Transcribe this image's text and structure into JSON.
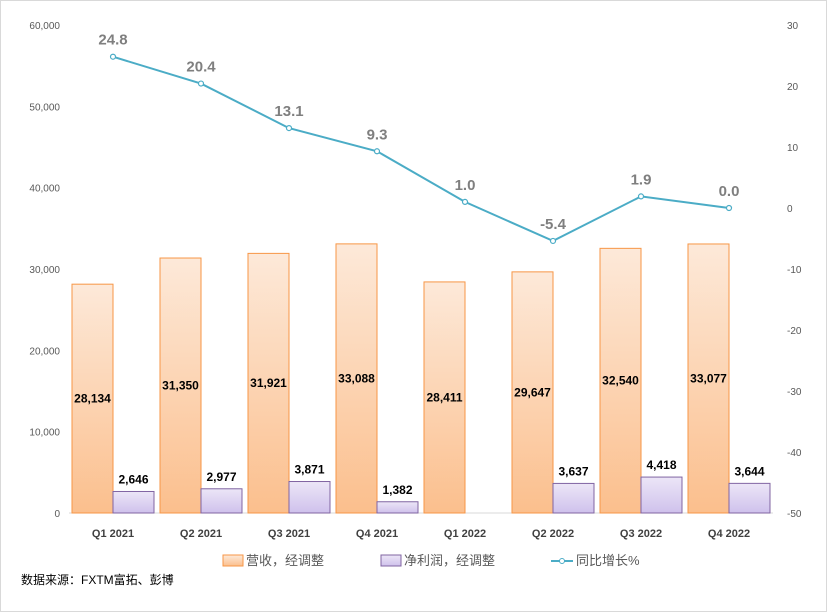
{
  "chart_data": {
    "type": "bar+line",
    "categories": [
      "Q1 2021",
      "Q2 2021",
      "Q3 2021",
      "Q4 2021",
      "Q1 2022",
      "Q2 2022",
      "Q3 2022",
      "Q4 2022"
    ],
    "series": [
      {
        "name": "营收，经调整",
        "type": "bar",
        "axis": "left",
        "color": "#fbc08e",
        "values": [
          28134,
          31350,
          31921,
          33088,
          28411,
          29647,
          32540,
          33077
        ],
        "labels": [
          "28,134",
          "31,350",
          "31,921",
          "33,088",
          "28,411",
          "29,647",
          "32,540",
          "33,077"
        ]
      },
      {
        "name": "净利润，经调整",
        "type": "bar",
        "axis": "left",
        "color": "#d9cdf0",
        "values": [
          2646,
          2977,
          3871,
          1382,
          null,
          3637,
          4418,
          3644
        ],
        "labels": [
          "2,646",
          "2,977",
          "3,871",
          "1,382",
          "",
          "3,637",
          "4,418",
          "3,644"
        ]
      },
      {
        "name": "同比增长%",
        "type": "line",
        "axis": "right",
        "color": "#4bacc6",
        "values": [
          24.8,
          20.4,
          13.1,
          9.3,
          1.0,
          -5.4,
          1.9,
          0.0
        ],
        "labels": [
          "24.8",
          "20.4",
          "13.1",
          "9.3",
          "1.0",
          "-5.4",
          "1.9",
          "0.0"
        ]
      }
    ],
    "left_axis": {
      "ylim": [
        0,
        60000
      ],
      "ticks": [
        "0",
        "10,000",
        "20,000",
        "30,000",
        "40,000",
        "50,000",
        "60,000"
      ]
    },
    "right_axis": {
      "ylim": [
        -50,
        30
      ],
      "ticks": [
        "-50",
        "-40",
        "-30",
        "-20",
        "-10",
        "0",
        "10",
        "20",
        "30"
      ]
    },
    "grid": false,
    "legend": "bottom"
  },
  "source": "数据来源：FXTM富拓、彭博"
}
